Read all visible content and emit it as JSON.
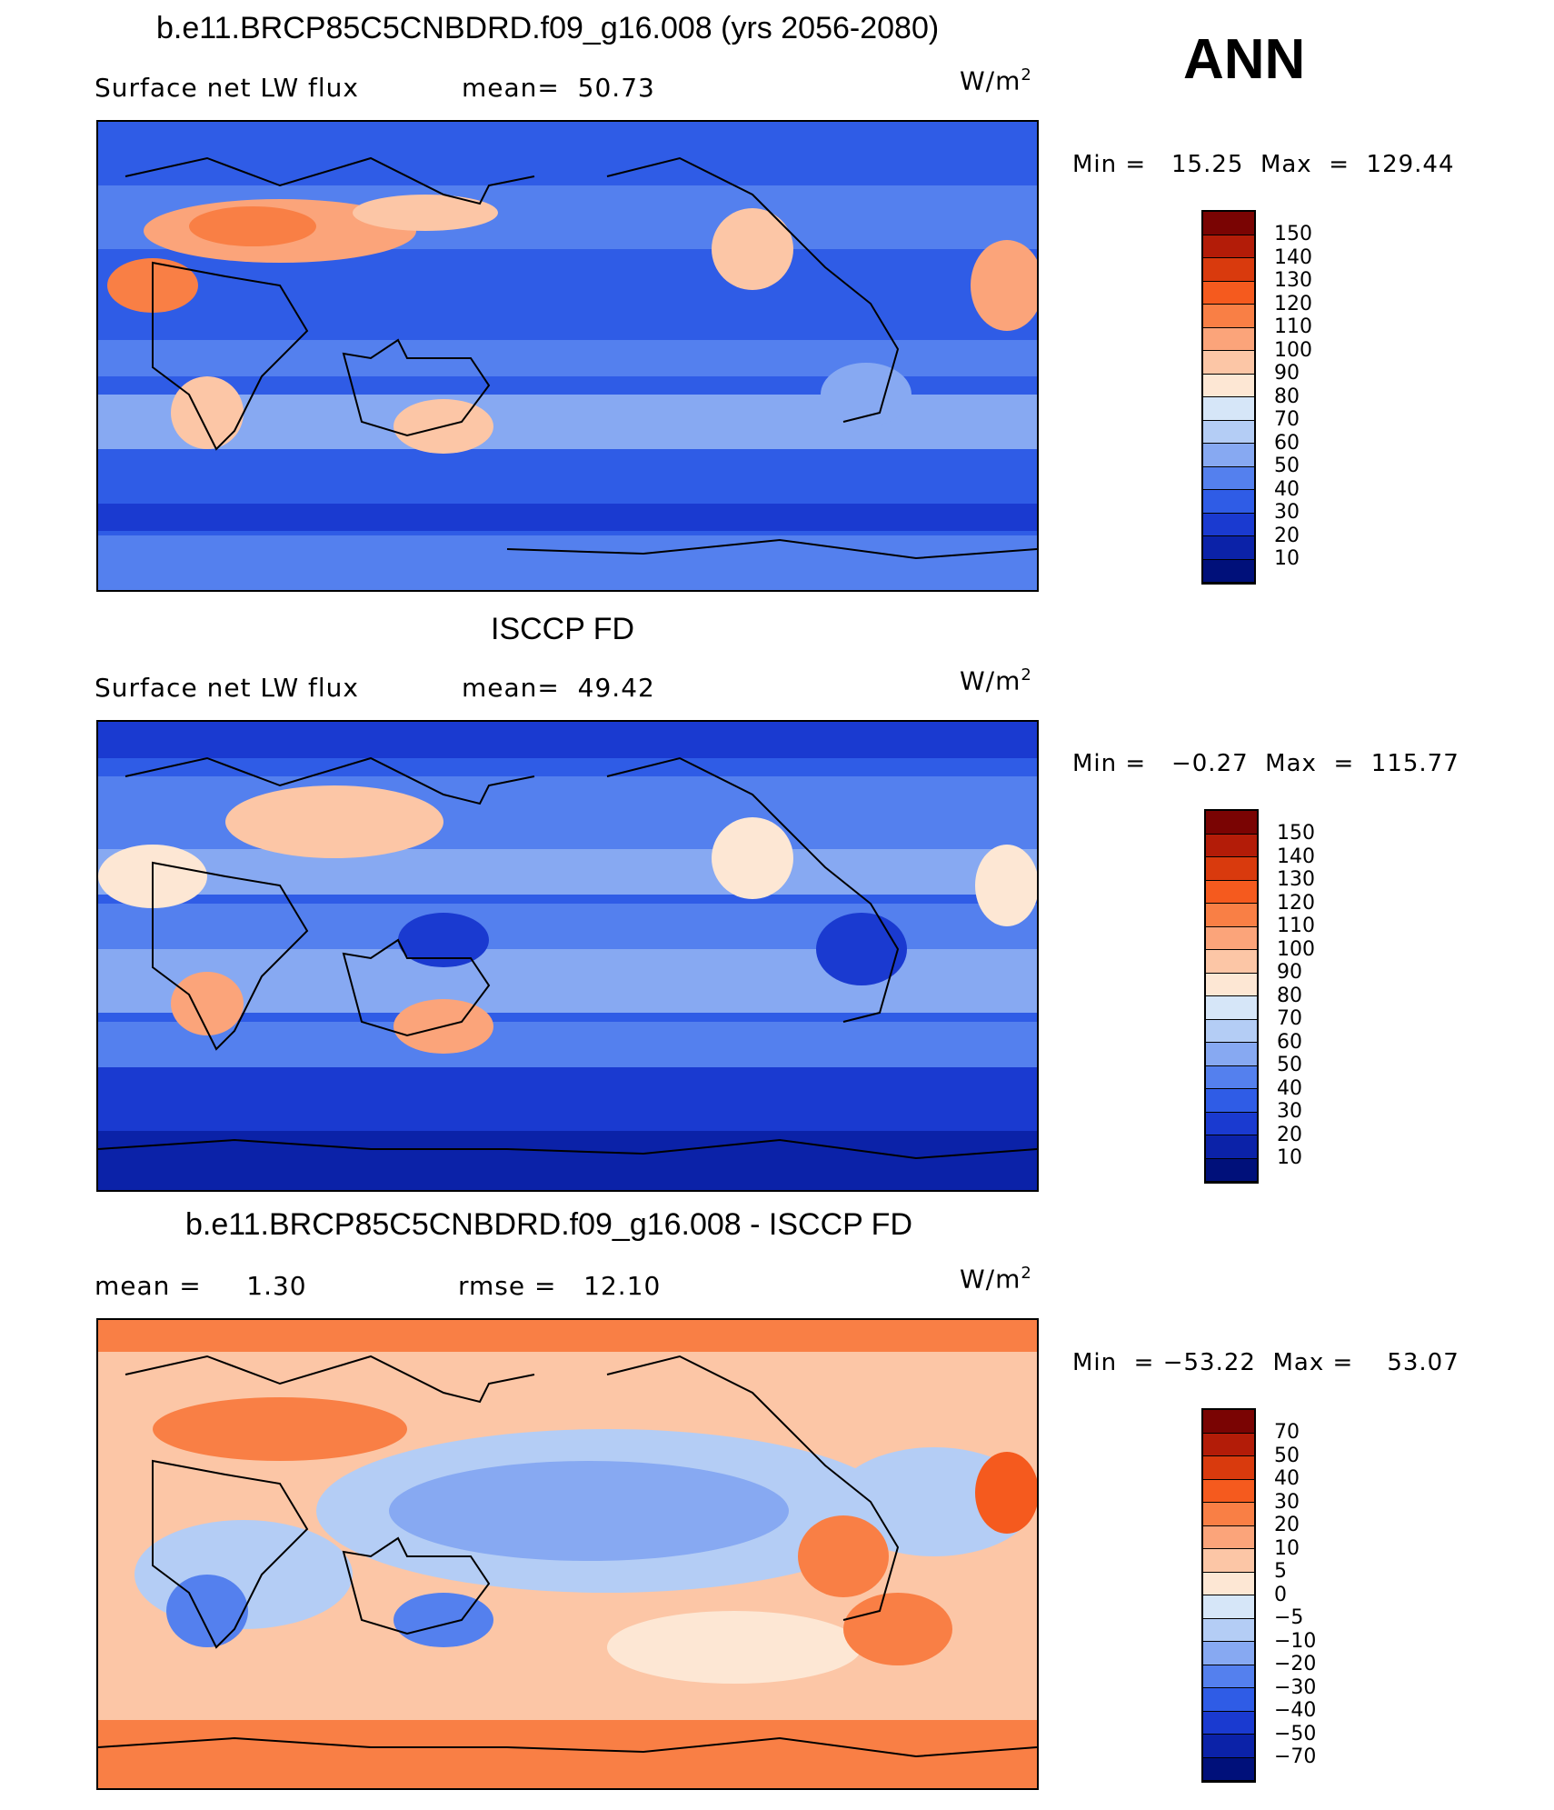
{
  "season": "ANN",
  "units": "W/m",
  "units_exp": "2",
  "panels": [
    {
      "title": "b.e11.BRCP85C5CNBDRD.f09_g16.008 (yrs 2056-2080)",
      "subtitle_left": "Surface net LW flux",
      "subtitle_mid": "mean=  50.73",
      "minmax": "Min =   15.25  Max  =  129.44",
      "labels": [
        "150",
        "140",
        "130",
        "120",
        "110",
        "100",
        "90",
        "80",
        "70",
        "60",
        "50",
        "40",
        "30",
        "20",
        "10"
      ]
    },
    {
      "title": "ISCCP FD",
      "subtitle_left": "Surface net LW flux",
      "subtitle_mid": "mean=  49.42",
      "minmax": "Min =   −0.27  Max  =  115.77",
      "labels": [
        "150",
        "140",
        "130",
        "120",
        "110",
        "100",
        "90",
        "80",
        "70",
        "60",
        "50",
        "40",
        "30",
        "20",
        "10"
      ]
    },
    {
      "title": "b.e11.BRCP85C5CNBDRD.f09_g16.008 - ISCCP FD",
      "subtitle_left": "mean =     1.30",
      "subtitle_mid": "rmse =   12.10",
      "minmax": "Min  = −53.22  Max =    53.07",
      "labels": [
        "70",
        "50",
        "40",
        "30",
        "20",
        "10",
        "5",
        "0",
        "−5",
        "−10",
        "−20",
        "−30",
        "−40",
        "−50",
        "−70"
      ]
    }
  ],
  "colors": {
    "abs_scale": [
      "#7a0403",
      "#b31c08",
      "#d93a0d",
      "#f55a1e",
      "#f97f45",
      "#fba47a",
      "#fcc6a6",
      "#fde7d4",
      "#d6e6f8",
      "#b4cdf5",
      "#87a9f2",
      "#5480ee",
      "#2f5ce6",
      "#1a3ad0",
      "#0b22a8",
      "#00107a"
    ],
    "diff_scale": [
      "#7a0403",
      "#b31c08",
      "#d93a0d",
      "#f55a1e",
      "#f97f45",
      "#fba47a",
      "#fcc6a6",
      "#fde7d4",
      "#d6e6f8",
      "#b4cdf5",
      "#87a9f2",
      "#5480ee",
      "#2f5ce6",
      "#1a3ad0",
      "#0b22a8",
      "#00107a"
    ]
  }
}
